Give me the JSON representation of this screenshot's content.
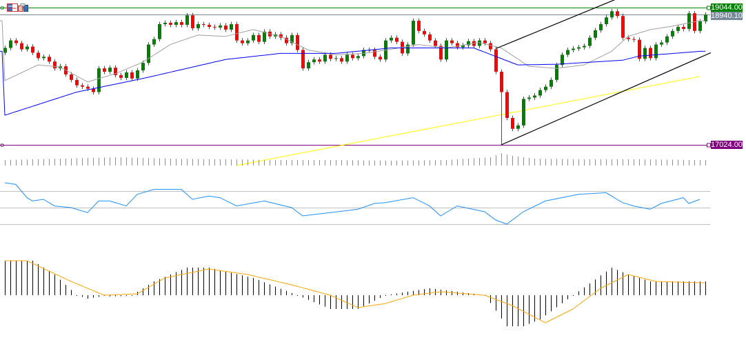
{
  "chart_data": {
    "type": "candlestick",
    "price_axis": {
      "top_price": 19044.0,
      "bottom_price": 17024.0
    },
    "price_lines": [
      {
        "label": "19044.00",
        "price": 19044.0,
        "color": "#008000"
      },
      {
        "label": "18940.10",
        "price": 18940.1,
        "color": "#778899"
      },
      {
        "label": "17024.00",
        "price": 17024.0,
        "color": "#800080"
      }
    ],
    "first_open": 18380,
    "closes": [
      18450,
      18560,
      18520,
      18430,
      18470,
      18380,
      18300,
      18320,
      18250,
      18150,
      18180,
      18060,
      17980,
      17900,
      17880,
      17850,
      17800,
      18150,
      18100,
      18160,
      18050,
      18010,
      18090,
      18000,
      18120,
      18230,
      18500,
      18580,
      18800,
      18820,
      18790,
      18830,
      18790,
      18930,
      18740,
      18800,
      18790,
      18760,
      18750,
      18780,
      18720,
      18800,
      18560,
      18520,
      18560,
      18640,
      18540,
      18690,
      18620,
      18650,
      18600,
      18520,
      18640,
      18420,
      18150,
      18240,
      18280,
      18250,
      18350,
      18290,
      18300,
      18250,
      18350,
      18300,
      18330,
      18420,
      18420,
      18320,
      18280,
      18560,
      18600,
      18540,
      18370,
      18500,
      18850,
      18700,
      18650,
      18560,
      18480,
      18280,
      18560,
      18520,
      18460,
      18490,
      18550,
      18480,
      18560,
      18520,
      18430,
      18100,
      17800,
      17420,
      17260,
      17310,
      17700,
      17720,
      17750,
      17830,
      17880,
      17980,
      18200,
      18350,
      18420,
      18440,
      18460,
      18480,
      18600,
      18710,
      18800,
      18900,
      18990,
      18920,
      18600,
      18580,
      18570,
      18290,
      18450,
      18300,
      18500,
      18530,
      18620,
      18700,
      18760,
      18730,
      18960,
      18700,
      18840,
      18940
    ],
    "colors": {
      "up": "#008000",
      "down": "#ff0000",
      "ma_fast": "#a0a0a0",
      "ma_mid": "#0000ff",
      "ma_slow": "#ffff00",
      "rsi": "#1e90ff",
      "macd_hist": "#000000",
      "macd_signal": "#ffa500",
      "volume": "#32cd32"
    },
    "ma_fast": [
      [
        0,
        17970
      ],
      [
        6,
        18200
      ],
      [
        10,
        18170
      ],
      [
        15,
        17950
      ],
      [
        20,
        18070
      ],
      [
        25,
        18240
      ],
      [
        30,
        18500
      ],
      [
        35,
        18640
      ],
      [
        40,
        18620
      ],
      [
        45,
        18720
      ],
      [
        50,
        18620
      ],
      [
        55,
        18420
      ],
      [
        60,
        18350
      ],
      [
        65,
        18370
      ],
      [
        70,
        18430
      ],
      [
        75,
        18500
      ],
      [
        80,
        18450
      ],
      [
        86,
        18530
      ],
      [
        90,
        18450
      ],
      [
        95,
        18180
      ],
      [
        100,
        18150
      ],
      [
        105,
        18200
      ],
      [
        110,
        18400
      ],
      [
        113,
        18620
      ],
      [
        117,
        18720
      ],
      [
        121,
        18770
      ],
      [
        126,
        18850
      ]
    ],
    "ma_mid": [
      [
        0,
        17460
      ],
      [
        13,
        17800
      ],
      [
        25,
        18000
      ],
      [
        40,
        18280
      ],
      [
        50,
        18370
      ],
      [
        60,
        18370
      ],
      [
        70,
        18450
      ],
      [
        85,
        18450
      ],
      [
        93,
        18200
      ],
      [
        100,
        18210
      ],
      [
        112,
        18270
      ],
      [
        115,
        18330
      ],
      [
        126,
        18400
      ]
    ],
    "ma_slow": [
      [
        42,
        16720
      ],
      [
        126,
        18030
      ]
    ],
    "channel": [
      {
        "from": [
          89,
          18440
        ],
        "to": [
          113,
          19240
        ]
      },
      {
        "from": [
          90,
          17024
        ],
        "to": [
          128,
          18380
        ]
      }
    ],
    "volume": [
      [
        0,
        8
      ],
      [
        10,
        10
      ],
      [
        20,
        12
      ],
      [
        30,
        10
      ],
      [
        40,
        9
      ],
      [
        50,
        8
      ],
      [
        60,
        8
      ],
      [
        70,
        7
      ],
      [
        80,
        8
      ],
      [
        88,
        12
      ],
      [
        90,
        18
      ],
      [
        92,
        14
      ],
      [
        96,
        10
      ],
      [
        105,
        9
      ],
      [
        115,
        9
      ],
      [
        126,
        8
      ]
    ],
    "rsi": {
      "levels": [
        70,
        50,
        30
      ],
      "points": [
        [
          0,
          80
        ],
        [
          2,
          78
        ],
        [
          3,
          70
        ],
        [
          4,
          62
        ],
        [
          5,
          58
        ],
        [
          7,
          60
        ],
        [
          9,
          52
        ],
        [
          12,
          50
        ],
        [
          15,
          44
        ],
        [
          17,
          58
        ],
        [
          19,
          58
        ],
        [
          22,
          52
        ],
        [
          24,
          66
        ],
        [
          27,
          72
        ],
        [
          32,
          72
        ],
        [
          34,
          60
        ],
        [
          37,
          64
        ],
        [
          39,
          62
        ],
        [
          42,
          52
        ],
        [
          47,
          58
        ],
        [
          52,
          50
        ],
        [
          54,
          40
        ],
        [
          59,
          44
        ],
        [
          64,
          48
        ],
        [
          67,
          55
        ],
        [
          69,
          56
        ],
        [
          74,
          62
        ],
        [
          77,
          52
        ],
        [
          79,
          40
        ],
        [
          82,
          52
        ],
        [
          87,
          45
        ],
        [
          89,
          35
        ],
        [
          91,
          30
        ],
        [
          94,
          45
        ],
        [
          98,
          58
        ],
        [
          104,
          66
        ],
        [
          109,
          68
        ],
        [
          112,
          56
        ],
        [
          114,
          52
        ],
        [
          117,
          48
        ],
        [
          119,
          55
        ],
        [
          123,
          62
        ],
        [
          124,
          55
        ],
        [
          126,
          60
        ]
      ]
    },
    "macd": {
      "histogram": [
        [
          0,
          50
        ],
        [
          5,
          50
        ],
        [
          9,
          30
        ],
        [
          13,
          0
        ],
        [
          15,
          -5
        ],
        [
          18,
          -1
        ],
        [
          23,
          0
        ],
        [
          27,
          20
        ],
        [
          33,
          40
        ],
        [
          37,
          40
        ],
        [
          45,
          25
        ],
        [
          53,
          0
        ],
        [
          59,
          -20
        ],
        [
          64,
          -20
        ],
        [
          69,
          0
        ],
        [
          77,
          10
        ],
        [
          87,
          0
        ],
        [
          91,
          -45
        ],
        [
          94,
          -45
        ],
        [
          97,
          -35
        ],
        [
          103,
          0
        ],
        [
          110,
          40
        ],
        [
          113,
          30
        ],
        [
          117,
          20
        ],
        [
          126,
          20
        ]
      ],
      "signal": [
        [
          0,
          50
        ],
        [
          4,
          50
        ],
        [
          12,
          20
        ],
        [
          18,
          0
        ],
        [
          24,
          2
        ],
        [
          29,
          25
        ],
        [
          37,
          38
        ],
        [
          44,
          30
        ],
        [
          52,
          15
        ],
        [
          59,
          0
        ],
        [
          64,
          -18
        ],
        [
          69,
          -12
        ],
        [
          74,
          0
        ],
        [
          79,
          5
        ],
        [
          87,
          0
        ],
        [
          92,
          -15
        ],
        [
          98,
          -40
        ],
        [
          103,
          -20
        ],
        [
          108,
          10
        ],
        [
          113,
          30
        ],
        [
          118,
          20
        ],
        [
          126,
          18
        ]
      ]
    }
  },
  "toolbar": {
    "icons": [
      "indicator-list-icon",
      "chart-template-icon"
    ]
  }
}
